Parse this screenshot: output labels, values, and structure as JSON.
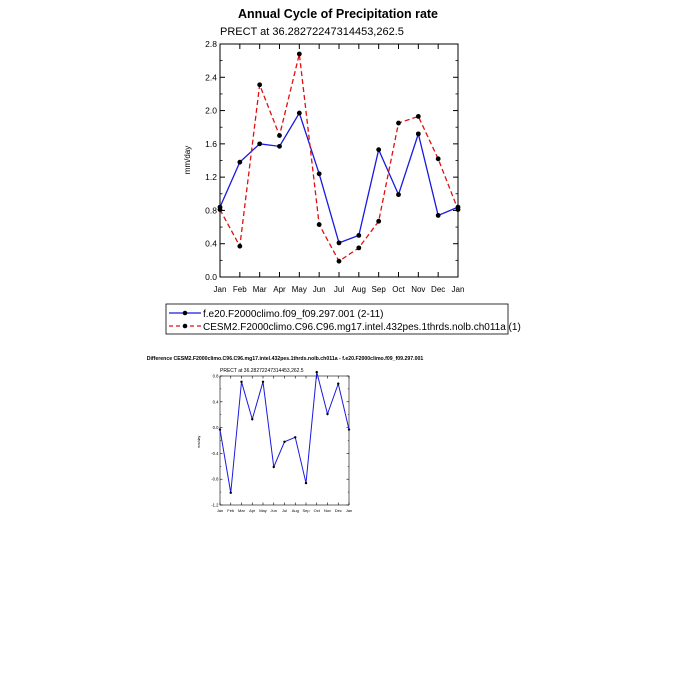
{
  "colors": {
    "blue": "#1a1adf",
    "red": "#e01010",
    "black": "#000000"
  },
  "chart_data": [
    {
      "type": "line",
      "title": "Annual Cycle of Precipitation rate",
      "subtitle": "PRECT at 36.28272247314453,262.5",
      "xlabel": "",
      "ylabel": "mm/day",
      "categories": [
        "Jan",
        "Feb",
        "Mar",
        "Apr",
        "May",
        "Jun",
        "Jul",
        "Aug",
        "Sep",
        "Oct",
        "Nov",
        "Dec",
        "Jan"
      ],
      "ylim": [
        0.0,
        2.8
      ],
      "yticks": [
        "0.0",
        "0.4",
        "0.8",
        "1.2",
        "1.6",
        "2.0",
        "2.4",
        "2.8"
      ],
      "legend_placement": "bottom",
      "series": [
        {
          "name": "f.e20.F2000climo.f09_f09.297.001 (2-11)",
          "style": "solid",
          "color_key": "blue",
          "values": [
            0.84,
            1.38,
            1.6,
            1.57,
            1.97,
            1.24,
            0.41,
            0.5,
            1.53,
            0.99,
            1.72,
            0.74,
            0.84
          ]
        },
        {
          "name": "CESM2.F2000climo.C96.C96.mg17.intel.432pes.1thrds.nolb.ch011a (1)",
          "style": "dashed",
          "color_key": "red",
          "values": [
            0.81,
            0.37,
            2.31,
            1.7,
            2.68,
            0.63,
            0.19,
            0.35,
            0.67,
            1.85,
            1.93,
            1.42,
            0.81
          ]
        }
      ]
    },
    {
      "type": "line",
      "title": "Difference CESM2.F2000climo.C96.C96.mg17.intel.432pes.1thrds.nolb.ch011a - f.e20.F2000climo.f09_f09.297.001",
      "subtitle": "PRECT at 36.28272247314453,262.5",
      "xlabel": "",
      "ylabel": "mm/day",
      "categories": [
        "Jan",
        "Feb",
        "Mar",
        "Apr",
        "May",
        "Jun",
        "Jul",
        "Aug",
        "Sep",
        "Oct",
        "Nov",
        "Dec",
        "Jan"
      ],
      "ylim": [
        -1.2,
        0.8
      ],
      "yticks": [
        "-1.2",
        "-0.8",
        "-0.4",
        "0.0",
        "0.4",
        "0.8"
      ],
      "series": [
        {
          "name": "difference",
          "style": "solid",
          "color_key": "blue",
          "values": [
            -0.03,
            -1.01,
            0.71,
            0.13,
            0.71,
            -0.61,
            -0.22,
            -0.15,
            -0.86,
            0.86,
            0.21,
            0.68,
            -0.03
          ]
        }
      ]
    }
  ]
}
